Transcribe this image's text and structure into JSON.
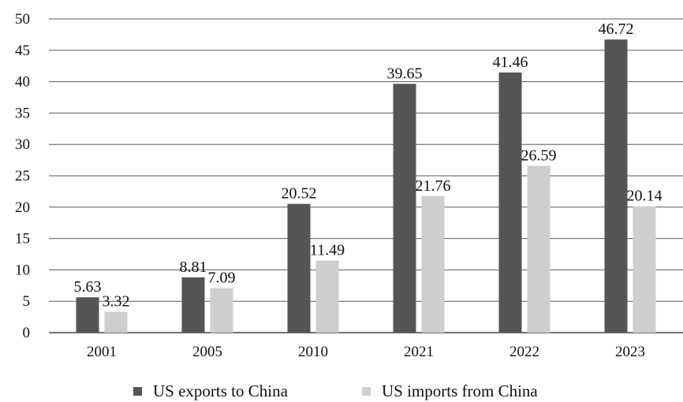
{
  "chart_data": {
    "type": "bar",
    "categories": [
      "2001",
      "2005",
      "2010",
      "2021",
      "2022",
      "2023"
    ],
    "series": [
      {
        "name": "US exports to China",
        "color": "#555555",
        "values": [
          5.63,
          8.81,
          20.52,
          39.65,
          41.46,
          46.72
        ]
      },
      {
        "name": "US imports from China",
        "color": "#cecece",
        "values": [
          3.32,
          7.09,
          11.49,
          21.76,
          26.59,
          20.14
        ]
      }
    ],
    "data_labels": [
      [
        "5.63",
        "8.81",
        "20.52",
        "39.65",
        "41.46",
        "46.72"
      ],
      [
        "3.32",
        "7.09",
        "11.49",
        "21.76",
        "26.59",
        "20.14"
      ]
    ],
    "y_ticks": [
      "0",
      "5",
      "10",
      "15",
      "20",
      "25",
      "30",
      "35",
      "40",
      "45",
      "50"
    ],
    "ylim": [
      0,
      50
    ],
    "grid": true,
    "legend_position": "bottom",
    "title": "",
    "xlabel": "",
    "ylabel": ""
  }
}
